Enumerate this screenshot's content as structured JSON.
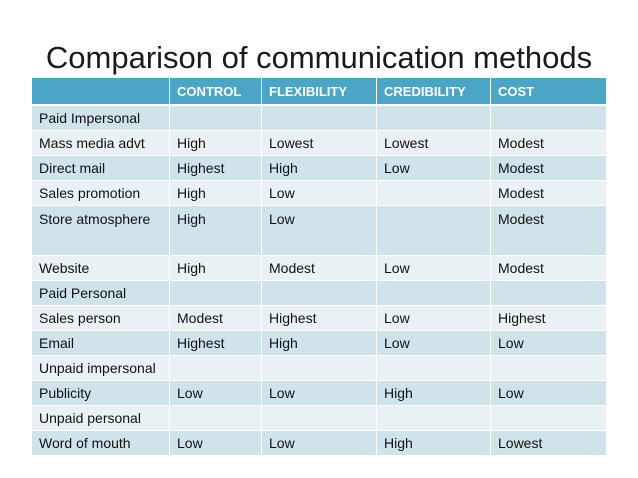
{
  "slide": {
    "title": "Comparison of communication methods"
  },
  "table": {
    "headers": [
      "",
      "CONTROL",
      "FLEXIBILITY",
      "CREDIBILITY",
      "COST"
    ],
    "rows": [
      [
        "Paid Impersonal",
        "",
        "",
        "",
        ""
      ],
      [
        "Mass media advt",
        "High",
        "Lowest",
        "Lowest",
        "Modest"
      ],
      [
        "Direct mail",
        "Highest",
        "High",
        "Low",
        "Modest"
      ],
      [
        "Sales promotion",
        "High",
        "Low",
        "",
        "Modest"
      ],
      [
        "Store atmosphere",
        "High",
        "Low",
        "",
        "Modest"
      ],
      [
        "Website",
        "High",
        "Modest",
        "Low",
        "Modest"
      ],
      [
        "Paid Personal",
        "",
        "",
        "",
        ""
      ],
      [
        "Sales person",
        "Modest",
        "Highest",
        "Low",
        "Highest"
      ],
      [
        "Email",
        "Highest",
        "High",
        "Low",
        "Low"
      ],
      [
        "Unpaid impersonal",
        "",
        "",
        "",
        ""
      ],
      [
        "Publicity",
        "Low",
        "Low",
        "High",
        "Low"
      ],
      [
        "Unpaid personal",
        "",
        "",
        "",
        ""
      ],
      [
        "Word of mouth",
        "Low",
        "Low",
        "High",
        "Lowest"
      ]
    ]
  }
}
